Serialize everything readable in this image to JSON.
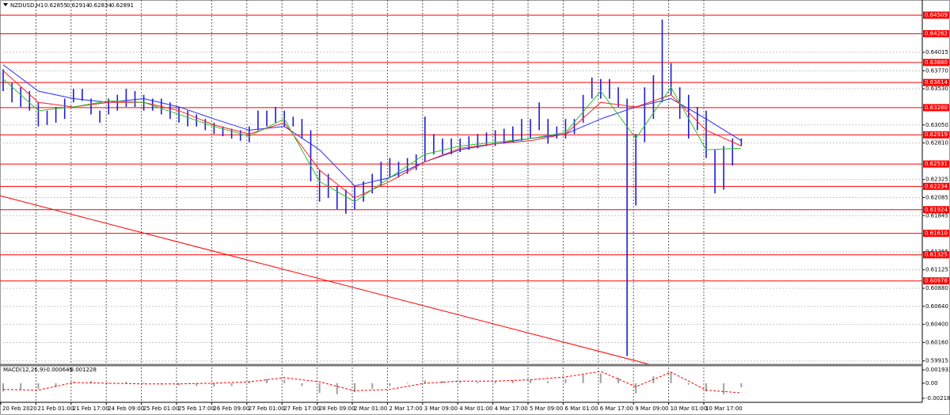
{
  "chart_data": {
    "type": "range",
    "title": "NZDUSD,H1",
    "ohlc": [
      0.62855,
      0.62914,
      0.62834,
      0.62891
    ],
    "color": "#1c1cd4",
    "time_labels": [
      "20 Feb 2020",
      "21 Feb 01:00",
      "21 Feb 17:00",
      "24 Feb 09:00",
      "25 Feb 01:00",
      "25 Feb 17:00",
      "26 Feb 09:00",
      "27 Feb 01:00",
      "27 Feb 17:00",
      "28 Feb 09:00",
      "2 Mar 01:00",
      "2 Mar 17:00",
      "3 Mar 09:00",
      "4 Mar 01:00",
      "4 Mar 17:00",
      "5 Mar 09:00",
      "6 Mar 01:00",
      "6 Mar 17:00",
      "9 Mar 09:00",
      "10 Mar 01:00",
      "10 Mar 17:00"
    ],
    "high": [
      0.6379,
      0.6361,
      0.6355,
      0.635,
      0.6335,
      0.6324,
      0.6329,
      0.634,
      0.6353,
      0.6353,
      0.634,
      0.6324,
      0.634,
      0.6345,
      0.6353,
      0.635,
      0.6345,
      0.634,
      0.634,
      0.6335,
      0.6329,
      0.6324,
      0.6319,
      0.6313,
      0.6308,
      0.6303,
      0.63,
      0.6298,
      0.6303,
      0.6324,
      0.6324,
      0.6329,
      0.6324,
      0.6316,
      0.6313,
      0.6298,
      0.6245,
      0.624,
      0.6224,
      0.6219,
      0.6224,
      0.623,
      0.624,
      0.6256,
      0.6261,
      0.6256,
      0.6261,
      0.6266,
      0.6316,
      0.6293,
      0.6287,
      0.6287,
      0.6287,
      0.629,
      0.6293,
      0.6295,
      0.6298,
      0.63,
      0.6303,
      0.6313,
      0.6313,
      0.6335,
      0.6313,
      0.6303,
      0.6313,
      0.6313,
      0.6345,
      0.6368,
      0.6366,
      0.6366,
      0.6355,
      0.634,
      0.6293,
      0.6355,
      0.6371,
      0.6445,
      0.6387,
      0.6355,
      0.6345,
      0.6329,
      0.6324,
      0.6272,
      0.6277,
      0.6287,
      0.6287
    ],
    "low": [
      0.635,
      0.6335,
      0.6329,
      0.6324,
      0.6303,
      0.6305,
      0.6308,
      0.6313,
      0.6335,
      0.6337,
      0.6319,
      0.6308,
      0.6319,
      0.6324,
      0.6329,
      0.6329,
      0.6324,
      0.6324,
      0.6319,
      0.6313,
      0.6308,
      0.6303,
      0.6303,
      0.6298,
      0.6293,
      0.629,
      0.6287,
      0.6284,
      0.6282,
      0.6298,
      0.6303,
      0.6308,
      0.6303,
      0.6303,
      0.6287,
      0.623,
      0.6203,
      0.6208,
      0.6193,
      0.6187,
      0.6193,
      0.6203,
      0.6214,
      0.6224,
      0.6235,
      0.6235,
      0.624,
      0.6245,
      0.6256,
      0.6266,
      0.6266,
      0.6266,
      0.6269,
      0.6272,
      0.6274,
      0.6277,
      0.6277,
      0.628,
      0.6282,
      0.6284,
      0.6287,
      0.6298,
      0.628,
      0.6287,
      0.6287,
      0.6293,
      0.6308,
      0.634,
      0.634,
      0.634,
      0.6329,
      0.5998,
      0.6198,
      0.6282,
      0.6313,
      0.6335,
      0.6345,
      0.6313,
      0.6287,
      0.6298,
      0.6261,
      0.6214,
      0.6219,
      0.6251,
      0.6277
    ],
    "moving_averages": [
      {
        "color": "#2b2bff",
        "values": [
          0.6385,
          0.635,
          0.634,
          0.6335,
          0.634,
          0.6329,
          0.6313,
          0.6298,
          0.6303,
          0.6272,
          0.6224,
          0.6235,
          0.6256,
          0.6272,
          0.628,
          0.6287,
          0.6293,
          0.6313,
          0.6329,
          0.634,
          0.6313,
          0.6284
        ]
      },
      {
        "color": "#ff2020",
        "values": [
          0.6377,
          0.6335,
          0.6329,
          0.6335,
          0.6335,
          0.6324,
          0.6305,
          0.6293,
          0.6308,
          0.6245,
          0.6208,
          0.623,
          0.6256,
          0.6274,
          0.628,
          0.6284,
          0.6293,
          0.6335,
          0.6329,
          0.6345,
          0.6298,
          0.6277
        ]
      },
      {
        "color": "#2fc02f",
        "values": [
          0.6366,
          0.6324,
          0.6329,
          0.6337,
          0.6335,
          0.6319,
          0.6303,
          0.629,
          0.6313,
          0.623,
          0.6203,
          0.6235,
          0.6266,
          0.6277,
          0.6282,
          0.6287,
          0.6295,
          0.635,
          0.6287,
          0.6355,
          0.6272,
          0.6274
        ]
      }
    ],
    "level_color": "#ff0000",
    "levels": [
      0.64509,
      0.64262,
      {
        "value": 0.6388,
        "label": "0.63880"
      },
      0.63614,
      {
        "value": 0.6328,
        "label": "0.63280"
      },
      0.62919,
      0.62531,
      0.62234,
      0.61924,
      {
        "value": 0.6161,
        "label": "0.61610"
      },
      0.61325,
      0.60978
    ],
    "trendline": [
      0.6211,
      0.5987
    ],
    "ylim": [
      0.5987,
      0.6471
    ],
    "yticks": [
      0.64015,
      {
        "value": 0.6377,
        "label": "0.63770"
      },
      {
        "value": 0.6353,
        "label": "0.63530"
      },
      {
        "value": 0.6305,
        "label": "0.63050"
      },
      {
        "value": 0.6281,
        "label": "0.62810"
      },
      0.62325,
      0.62085,
      0.61845,
      0.61365,
      0.61125,
      {
        "value": 0.6088,
        "label": "0.60880"
      },
      {
        "value": 0.6064,
        "label": "0.60640"
      },
      {
        "value": 0.604,
        "label": "0.60400"
      },
      {
        "value": 0.6016,
        "label": "0.60160"
      },
      0.59915
    ],
    "grid": true,
    "macd": {
      "label": "MACD(12,26,9)",
      "printed_values": [
        -0.000645,
        -0.001228
      ],
      "histogram_color": "#a0a0a0",
      "signal_color": "#ff0000",
      "histogram": [
        -0.0012,
        -0.001,
        -0.0008,
        -0.0005,
        0.0002,
        0.0003,
        -0.0001,
        0.0002,
        0.0001,
        -0.0002,
        -0.0003,
        -0.0004,
        -0.0005,
        -0.0004,
        0.0003,
        0.0006,
        0.0005,
        -0.0004,
        -0.0014,
        -0.0016,
        -0.0013,
        -0.0008,
        -0.0004,
        0.0001,
        0.0004,
        0.0003,
        0.0002,
        0.0002,
        0.0003,
        0.0004,
        0.0005,
        0.0003,
        0.0006,
        0.0012,
        0.0014,
        0.0008,
        -0.0015,
        0.001,
        0.0016,
        -0.0002,
        -0.0012,
        -0.0016,
        -0.0006
      ],
      "signal": [
        -0.0009,
        -0.001,
        0.0001,
        0.0,
        -0.0001,
        -0.0001,
        0.0,
        0.0002,
        0.0008,
        0.0002,
        -0.0011,
        -0.0009,
        0.0,
        0.0003,
        0.0003,
        0.0005,
        0.0009,
        0.0017,
        -0.0005,
        0.0016,
        -0.001,
        -0.0014
      ],
      "ylim": [
        -0.00276,
        0.0025
      ],
      "yticks": [
        0.001933,
        {
          "value": 0,
          "label": "0.00"
        },
        -0.002184
      ]
    }
  }
}
